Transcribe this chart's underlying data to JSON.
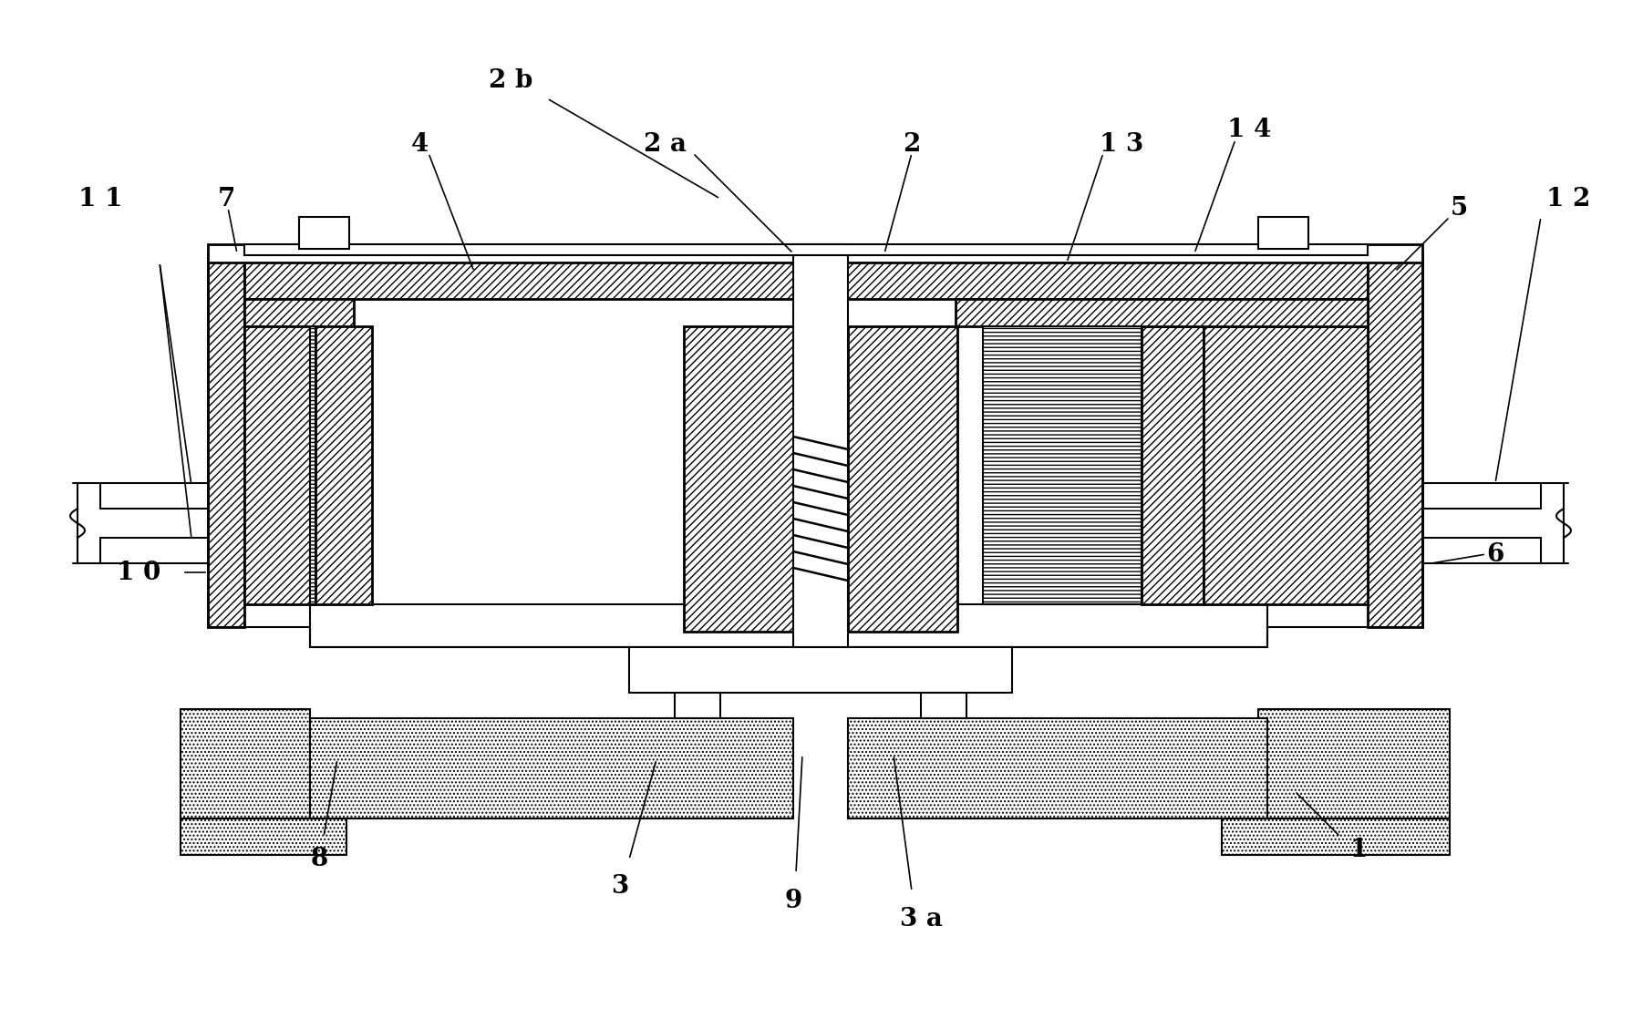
{
  "bg_color": "#ffffff",
  "lc": "#000000",
  "lw": 1.5,
  "fs": 20
}
